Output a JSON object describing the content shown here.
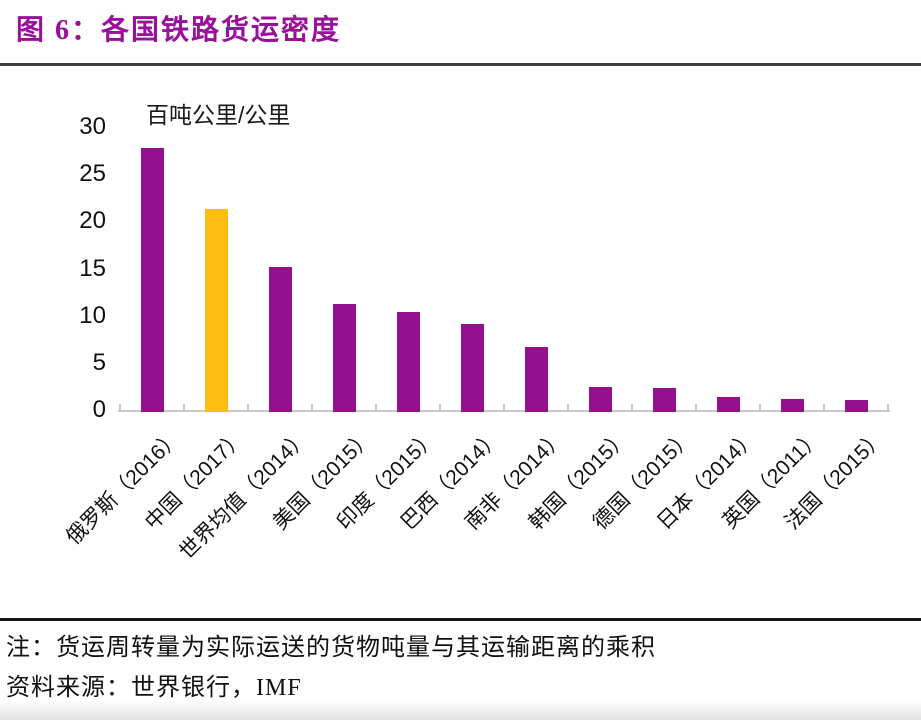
{
  "header": {
    "title": "图 6：各国铁路货运密度"
  },
  "chart_data": {
    "type": "bar",
    "title": "各国铁路货运密度",
    "unit_label": "百吨公里/公里",
    "categories": [
      "俄罗斯（2016）",
      "中国（2017）",
      "世界均值（2014）",
      "美国（2015）",
      "印度（2015）",
      "巴西（2014）",
      "南非（2014）",
      "韩国（2015）",
      "德国（2015）",
      "日本（2014）",
      "英国（2011）",
      "法国（2015）"
    ],
    "values": [
      27.8,
      21.3,
      15.2,
      11.2,
      10.4,
      9.1,
      6.7,
      2.4,
      2.3,
      1.4,
      1.2,
      1.1
    ],
    "ylim": [
      0,
      30
    ],
    "ytick_step": 5,
    "yticks": [
      0,
      5,
      10,
      15,
      20,
      25,
      30
    ],
    "xlabel": "",
    "ylabel": "百吨公里/公里",
    "grid": false,
    "legend": false,
    "bar_color": "#94108E",
    "highlight_index": 1,
    "highlight_color": "#FCBE13",
    "axis_color": "#C9C9C9"
  },
  "footer": {
    "note": "注：货运周转量为实际运送的货物吨量与其运输距离的乘积",
    "source": "资料来源：世界银行，IMF"
  }
}
